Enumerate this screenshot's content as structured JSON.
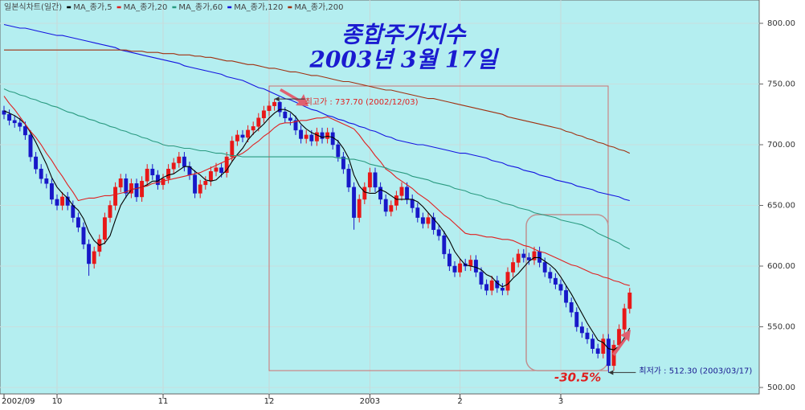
{
  "chart_data": {
    "type": "candlestick",
    "title": "종합주가지수",
    "subtitle": "2003년 3월 17일",
    "chart_label": "일본식차트(일간)",
    "up_color": "#e81818",
    "down_color": "#1818c8",
    "categories": [
      "2002/09",
      null,
      null,
      null,
      null,
      null,
      null,
      null,
      null,
      null,
      "10",
      null,
      null,
      null,
      null,
      null,
      null,
      null,
      null,
      null,
      null,
      null,
      null,
      null,
      null,
      null,
      null,
      null,
      null,
      null,
      "11",
      null,
      null,
      null,
      null,
      null,
      null,
      null,
      null,
      null,
      null,
      null,
      null,
      null,
      null,
      null,
      null,
      null,
      null,
      null,
      "12",
      null,
      null,
      null,
      null,
      null,
      null,
      null,
      null,
      null,
      null,
      null,
      null,
      null,
      null,
      null,
      null,
      null,
      null,
      "2003",
      null,
      null,
      null,
      null,
      null,
      null,
      null,
      null,
      null,
      null,
      null,
      null,
      null,
      null,
      null,
      null,
      "2",
      null,
      null,
      null,
      null,
      null,
      null,
      null,
      null,
      null,
      null,
      null,
      null,
      null,
      null,
      null,
      null,
      null,
      null,
      "3",
      null,
      null,
      null,
      null,
      null,
      null,
      null,
      null,
      null,
      null,
      null,
      null,
      null
    ],
    "ohlc": [
      [
        728,
        732,
        721,
        725
      ],
      [
        725,
        729,
        716,
        720
      ],
      [
        720,
        724,
        714,
        718
      ],
      [
        718,
        722,
        711,
        715
      ],
      [
        715,
        719,
        704,
        708
      ],
      [
        708,
        712,
        686,
        690
      ],
      [
        690,
        694,
        676,
        680
      ],
      [
        680,
        684,
        668,
        672
      ],
      [
        672,
        676,
        664,
        668
      ],
      [
        668,
        672,
        651,
        655
      ],
      [
        655,
        659,
        646,
        650
      ],
      [
        650,
        661,
        646,
        657
      ],
      [
        657,
        661,
        646,
        650
      ],
      [
        650,
        654,
        636,
        640
      ],
      [
        640,
        644,
        628,
        632
      ],
      [
        632,
        636,
        614,
        618
      ],
      [
        618,
        622,
        592,
        602
      ],
      [
        602,
        616,
        598,
        612
      ],
      [
        612,
        626,
        608,
        622
      ],
      [
        622,
        644,
        618,
        640
      ],
      [
        640,
        654,
        636,
        650
      ],
      [
        650,
        669,
        646,
        665
      ],
      [
        665,
        676,
        661,
        672
      ],
      [
        672,
        676,
        656,
        660
      ],
      [
        660,
        672,
        656,
        668
      ],
      [
        668,
        672,
        653,
        657
      ],
      [
        657,
        674,
        653,
        670
      ],
      [
        670,
        684,
        666,
        680
      ],
      [
        680,
        684,
        671,
        675
      ],
      [
        675,
        679,
        663,
        667
      ],
      [
        667,
        676,
        663,
        672
      ],
      [
        672,
        684,
        668,
        680
      ],
      [
        680,
        689,
        676,
        685
      ],
      [
        685,
        694,
        681,
        690
      ],
      [
        690,
        694,
        678,
        682
      ],
      [
        682,
        686,
        671,
        675
      ],
      [
        675,
        679,
        656,
        660
      ],
      [
        660,
        671,
        656,
        667
      ],
      [
        667,
        674,
        663,
        670
      ],
      [
        670,
        682,
        666,
        678
      ],
      [
        678,
        685,
        674,
        681
      ],
      [
        681,
        685,
        673,
        677
      ],
      [
        677,
        694,
        673,
        690
      ],
      [
        690,
        707,
        686,
        703
      ],
      [
        703,
        712,
        699,
        708
      ],
      [
        708,
        712,
        702,
        706
      ],
      [
        706,
        716,
        702,
        712
      ],
      [
        712,
        719,
        708,
        715
      ],
      [
        715,
        726,
        711,
        722
      ],
      [
        722,
        732,
        718,
        728
      ],
      [
        728,
        736,
        724,
        732
      ],
      [
        732,
        737.7,
        728,
        735
      ],
      [
        735,
        736,
        723,
        727
      ],
      [
        727,
        731,
        718,
        722
      ],
      [
        722,
        726,
        716,
        720
      ],
      [
        720,
        724,
        708,
        712
      ],
      [
        712,
        716,
        701,
        705
      ],
      [
        705,
        712,
        701,
        708
      ],
      [
        708,
        712,
        699,
        703
      ],
      [
        703,
        714,
        699,
        710
      ],
      [
        710,
        714,
        701,
        705
      ],
      [
        705,
        714,
        701,
        710
      ],
      [
        710,
        714,
        696,
        700
      ],
      [
        700,
        704,
        686,
        690
      ],
      [
        690,
        694,
        676,
        680
      ],
      [
        680,
        684,
        661,
        665
      ],
      [
        665,
        669,
        630,
        640
      ],
      [
        640,
        659,
        636,
        655
      ],
      [
        655,
        669,
        651,
        665
      ],
      [
        665,
        681,
        661,
        677
      ],
      [
        677,
        681,
        661,
        665
      ],
      [
        665,
        669,
        651,
        655
      ],
      [
        655,
        659,
        641,
        645
      ],
      [
        645,
        654,
        641,
        650
      ],
      [
        650,
        662,
        646,
        658
      ],
      [
        658,
        669,
        654,
        665
      ],
      [
        665,
        669,
        651,
        655
      ],
      [
        655,
        659,
        644,
        648
      ],
      [
        648,
        652,
        636,
        640
      ],
      [
        640,
        644,
        631,
        635
      ],
      [
        635,
        644,
        631,
        640
      ],
      [
        640,
        644,
        626,
        630
      ],
      [
        630,
        634,
        621,
        625
      ],
      [
        625,
        629,
        606,
        610
      ],
      [
        610,
        614,
        596,
        600
      ],
      [
        600,
        604,
        591,
        595
      ],
      [
        595,
        606,
        591,
        602
      ],
      [
        602,
        606,
        596,
        600
      ],
      [
        600,
        609,
        596,
        605
      ],
      [
        605,
        609,
        591,
        595
      ],
      [
        595,
        599,
        581,
        585
      ],
      [
        585,
        589,
        576,
        580
      ],
      [
        580,
        592,
        576,
        588
      ],
      [
        588,
        592,
        578,
        582
      ],
      [
        582,
        586,
        576,
        580
      ],
      [
        580,
        599,
        576,
        595
      ],
      [
        595,
        607,
        591,
        603
      ],
      [
        603,
        614,
        599,
        610
      ],
      [
        610,
        614,
        603,
        607
      ],
      [
        607,
        611,
        601,
        605
      ],
      [
        605,
        616,
        601,
        612
      ],
      [
        612,
        616,
        599,
        603
      ],
      [
        603,
        607,
        591,
        595
      ],
      [
        595,
        599,
        586,
        590
      ],
      [
        590,
        594,
        581,
        585
      ],
      [
        585,
        589,
        576,
        580
      ],
      [
        580,
        584,
        566,
        570
      ],
      [
        570,
        574,
        558,
        562
      ],
      [
        562,
        566,
        546,
        550
      ],
      [
        550,
        554,
        541,
        545
      ],
      [
        545,
        549,
        536,
        540
      ],
      [
        540,
        544,
        528,
        532
      ],
      [
        532,
        536,
        524,
        528
      ],
      [
        528,
        544,
        524,
        540
      ],
      [
        540,
        544,
        512.3,
        518
      ],
      [
        518,
        539,
        514,
        535
      ],
      [
        535,
        552,
        531,
        548
      ],
      [
        548,
        569,
        544,
        565
      ],
      [
        565,
        582,
        561,
        578
      ]
    ],
    "series": [
      {
        "name": "MA_종가,5",
        "color": "#000000",
        "values": [
          728,
          726,
          724,
          721,
          717,
          710,
          702,
          693,
          684,
          673,
          665,
          660,
          656,
          650,
          646,
          639,
          628,
          621,
          617,
          619,
          625,
          638,
          650,
          657,
          663,
          664,
          665,
          667,
          670,
          670,
          673,
          675,
          676,
          679,
          682,
          682,
          678,
          675,
          671,
          670,
          671,
          675,
          679,
          686,
          692,
          697,
          704,
          709,
          713,
          717,
          722,
          726,
          729,
          729,
          727,
          723,
          717,
          713,
          710,
          708,
          706,
          707,
          706,
          703,
          697,
          689,
          675,
          666,
          661,
          660,
          660,
          663,
          661,
          658,
          655,
          655,
          655,
          655,
          653,
          649,
          644,
          639,
          634,
          628,
          621,
          612,
          606,
          601,
          600,
          599,
          597,
          593,
          591,
          586,
          583,
          585,
          590,
          594,
          599,
          604,
          607,
          607,
          604,
          601,
          597,
          591,
          584,
          577,
          569,
          561,
          553,
          546,
          539,
          537,
          532,
          531,
          534,
          541,
          549
        ]
      },
      {
        "name": "MA_종가,20",
        "color": "#e02020",
        "values": [
          740,
          734,
          729,
          723,
          717,
          711,
          706,
          700,
          693,
          687,
          680,
          674,
          667,
          661,
          654,
          655,
          656,
          656,
          657,
          658,
          658,
          659,
          660,
          661,
          663,
          664,
          665,
          666,
          668,
          669,
          670,
          671,
          672,
          673,
          674,
          675,
          676,
          677,
          679,
          681,
          683,
          685,
          687,
          689,
          691,
          693,
          696,
          700,
          703,
          707,
          710,
          714,
          717,
          718,
          718,
          719,
          720,
          720,
          721,
          722,
          722,
          723,
          721,
          719,
          717,
          715,
          713,
          708,
          702,
          697,
          691,
          686,
          680,
          677,
          673,
          670,
          667,
          664,
          660,
          657,
          654,
          650,
          646,
          642,
          639,
          635,
          631,
          627,
          626,
          626,
          625,
          624,
          624,
          623,
          622,
          622,
          621,
          619,
          617,
          616,
          614,
          612,
          611,
          609,
          607,
          605,
          603,
          601,
          600,
          598,
          596,
          594,
          593,
          591,
          590,
          588,
          587,
          585,
          584
        ]
      },
      {
        "name": "MA_종가,60",
        "color": "#2a9a80",
        "values": [
          746,
          744,
          743,
          741,
          740,
          738,
          737,
          735,
          734,
          732,
          731,
          729,
          727,
          726,
          724,
          723,
          721,
          720,
          718,
          717,
          715,
          714,
          712,
          711,
          709,
          708,
          706,
          705,
          703,
          702,
          700,
          699,
          699,
          698,
          697,
          697,
          696,
          695,
          695,
          694,
          693,
          693,
          692,
          691,
          691,
          690,
          690,
          690,
          690,
          690,
          690,
          690,
          690,
          690,
          690,
          690,
          690,
          690,
          690,
          690,
          690,
          690,
          690,
          689,
          689,
          688,
          688,
          687,
          686,
          684,
          683,
          682,
          681,
          679,
          678,
          677,
          676,
          674,
          673,
          672,
          671,
          669,
          668,
          667,
          666,
          664,
          663,
          662,
          660,
          659,
          658,
          656,
          655,
          654,
          652,
          651,
          650,
          648,
          647,
          646,
          644,
          643,
          642,
          641,
          640,
          638,
          637,
          636,
          635,
          634,
          632,
          630,
          627,
          625,
          623,
          621,
          619,
          616,
          614
        ]
      },
      {
        "name": "MA_종가,120",
        "color": "#1414e0",
        "values": [
          799,
          798,
          797,
          796,
          796,
          795,
          794,
          793,
          792,
          791,
          790,
          790,
          789,
          788,
          787,
          786,
          785,
          784,
          783,
          782,
          781,
          780,
          778,
          777,
          776,
          775,
          774,
          773,
          772,
          771,
          770,
          769,
          768,
          767,
          765,
          764,
          763,
          762,
          761,
          760,
          759,
          758,
          756,
          755,
          754,
          753,
          751,
          749,
          747,
          746,
          744,
          742,
          740,
          738,
          737,
          735,
          733,
          731,
          729,
          728,
          726,
          724,
          723,
          721,
          720,
          718,
          717,
          715,
          714,
          712,
          711,
          709,
          707,
          706,
          704,
          703,
          702,
          701,
          700,
          700,
          699,
          698,
          697,
          696,
          695,
          694,
          693,
          693,
          692,
          691,
          690,
          689,
          687,
          686,
          685,
          683,
          682,
          681,
          679,
          678,
          677,
          675,
          674,
          673,
          671,
          670,
          669,
          668,
          666,
          665,
          664,
          663,
          661,
          660,
          659,
          658,
          657,
          655,
          654
        ]
      },
      {
        "name": "MA_종가,200",
        "color": "#a03010",
        "values": [
          778,
          778,
          778,
          778,
          778,
          778,
          778,
          778,
          778,
          778,
          778,
          778,
          778,
          778,
          778,
          778,
          778,
          778,
          778,
          778,
          778,
          778,
          778,
          778,
          777,
          777,
          777,
          776,
          776,
          776,
          775,
          775,
          775,
          774,
          774,
          774,
          773,
          773,
          772,
          772,
          771,
          770,
          769,
          769,
          768,
          767,
          766,
          766,
          765,
          764,
          763,
          763,
          762,
          761,
          760,
          760,
          759,
          758,
          757,
          757,
          756,
          755,
          754,
          753,
          752,
          752,
          751,
          750,
          749,
          748,
          747,
          746,
          745,
          745,
          744,
          743,
          742,
          741,
          740,
          739,
          738,
          738,
          737,
          736,
          735,
          734,
          733,
          732,
          731,
          730,
          729,
          728,
          727,
          726,
          725,
          723,
          722,
          721,
          720,
          719,
          718,
          717,
          716,
          715,
          714,
          713,
          711,
          710,
          708,
          707,
          705,
          704,
          702,
          701,
          699,
          698,
          696,
          695,
          693
        ]
      }
    ],
    "ylim": [
      494.7,
      819.2
    ],
    "yticks": [
      {
        "value": 500,
        "label": "500.00"
      },
      {
        "value": 550,
        "label": "550.00"
      },
      {
        "value": 600,
        "label": "600.00"
      },
      {
        "value": 650,
        "label": "650.00"
      },
      {
        "value": 700,
        "label": "700.00"
      },
      {
        "value": 750,
        "label": "750.00"
      },
      {
        "value": 800,
        "label": "800.00"
      }
    ],
    "grid": true,
    "annotations": {
      "high": "최고가 : 737.70 (2002/12/03)",
      "low": "최저가 : 512.30 (2003/03/17)",
      "change": "-30.5%"
    }
  }
}
